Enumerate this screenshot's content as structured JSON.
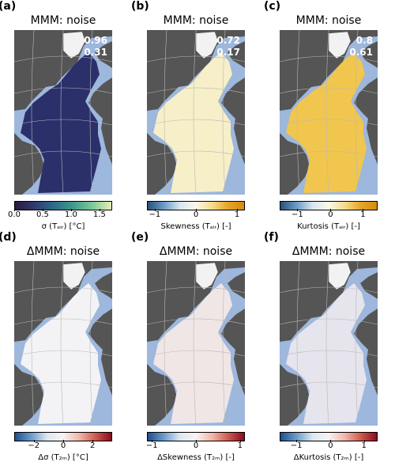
{
  "panels": [
    {
      "letter": "(a)",
      "title": "MMM: noise",
      "stats": [
        "0.96",
        "0.31"
      ],
      "cbar_label": "σ (Tₐᵢᵣ) [°C]",
      "ticks": [
        "0.0",
        "0.5",
        "1.0",
        "1.5"
      ],
      "colormap": "viridis-dark",
      "ocean_color": "#2b2f6a"
    },
    {
      "letter": "(b)",
      "title": "MMM: noise",
      "stats": [
        "0.72",
        "0.17"
      ],
      "cbar_label": "Skewness (Tₐᵢᵣ) [-]",
      "ticks": [
        "−1",
        "0",
        "1"
      ],
      "colormap": "blue-white-orange",
      "ocean_color": "#f7efc8"
    },
    {
      "letter": "(c)",
      "title": "MMM: noise",
      "stats": [
        "0.8",
        "0.61"
      ],
      "cbar_label": "Kurtosis (Tₐᵢᵣ) [-]",
      "ticks": [
        "−1",
        "0",
        "1"
      ],
      "colormap": "blue-white-orange",
      "ocean_color": "#f1c64e"
    },
    {
      "letter": "(d)",
      "title": "ΔMMM: noise",
      "stats": [],
      "cbar_label": "Δσ (T₂ₘ) [°C]",
      "ticks": [
        "−2",
        "0",
        "2"
      ],
      "colormap": "blue-white-red",
      "ocean_color": "#f3f3f5"
    },
    {
      "letter": "(e)",
      "title": "ΔMMM: noise",
      "stats": [],
      "cbar_label": "ΔSkewness (T₂ₘ) [-]",
      "ticks": [
        "−1",
        "0",
        "1"
      ],
      "colormap": "blue-white-red",
      "ocean_color": "#f0e6e6"
    },
    {
      "letter": "(f)",
      "title": "ΔMMM: noise",
      "stats": [],
      "cbar_label": "ΔKurtosis (T₂ₘ) [-]",
      "ticks": [
        "−1",
        "0",
        "1"
      ],
      "colormap": "blue-white-red",
      "ocean_color": "#e6e4ec"
    }
  ],
  "colors": {
    "land": "#555555",
    "background_water": "#9db7dd",
    "grid": "#b8b8b8"
  }
}
